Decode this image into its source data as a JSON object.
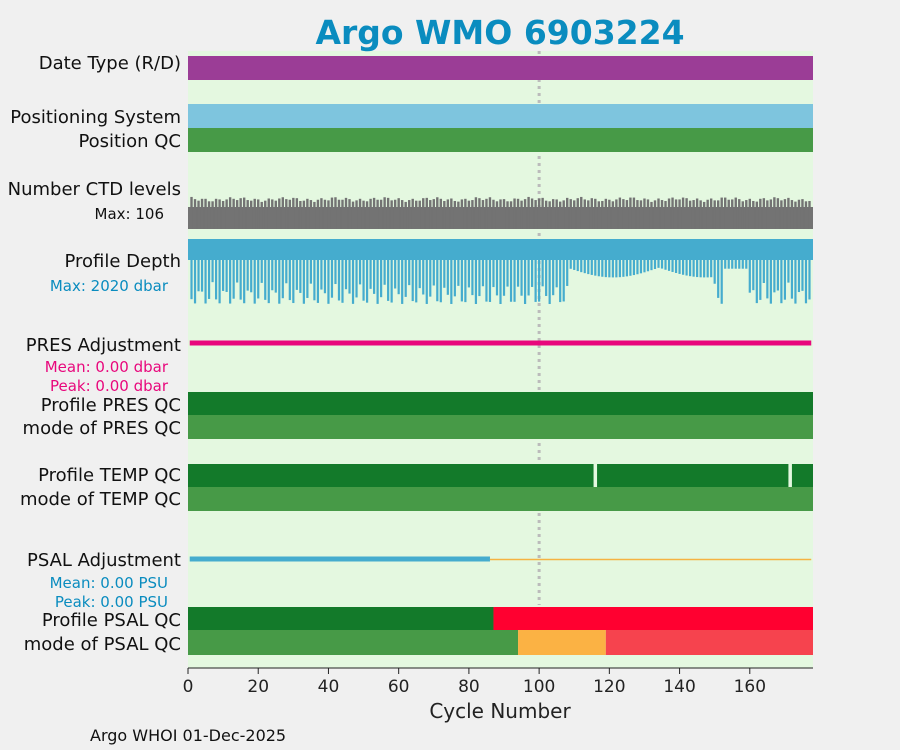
{
  "chart_data": {
    "type": "bar",
    "title": "Argo WMO 6903224",
    "xlabel": "Cycle Number",
    "xlim": [
      0,
      178
    ],
    "x_ticks": [
      "0",
      "20",
      "40",
      "60",
      "80",
      "100",
      "120",
      "140",
      "160"
    ],
    "x_tick_values": [
      0,
      20,
      40,
      60,
      80,
      100,
      120,
      140,
      160
    ],
    "reference_line_x": 100,
    "footer": "Argo WHOI 01-Dec-2025",
    "rows": {
      "date_type": {
        "label": "Date Type (R/D)",
        "segments": [
          {
            "from": 0,
            "to": 178,
            "color": "#9b3d96"
          }
        ]
      },
      "positioning_system": {
        "label": "Positioning System",
        "segments": [
          {
            "from": 0,
            "to": 178,
            "color": "#7ec5de"
          }
        ]
      },
      "position_qc": {
        "label": "Position QC",
        "segments": [
          {
            "from": 0,
            "to": 178,
            "color": "#479a47"
          }
        ]
      },
      "ctd_levels": {
        "label": "Number CTD levels",
        "max_label": "Max: 106",
        "max": 106,
        "color": "#737373"
      },
      "profile_depth": {
        "label": "Profile Depth",
        "max_label": "Max: 2020 dbar",
        "max": 2020,
        "color": "#45acce"
      },
      "pres_adjustment": {
        "label": "PRES Adjustment",
        "mean_label": "Mean: 0.00 dbar",
        "peak_label": "Peak: 0.00 dbar",
        "mean": 0.0,
        "peak": 0.0,
        "color": "#e8077c"
      },
      "profile_pres_qc": {
        "label": "Profile PRES QC",
        "segments": [
          {
            "from": 0,
            "to": 178,
            "color": "#137a2a"
          }
        ]
      },
      "mode_pres_qc": {
        "label": "mode of PRES QC",
        "segments": [
          {
            "from": 0,
            "to": 178,
            "color": "#479a47"
          }
        ]
      },
      "profile_temp_qc": {
        "label": "Profile TEMP QC",
        "segments": [
          {
            "from": 0,
            "to": 115.5,
            "color": "#137a2a"
          },
          {
            "from": 116.5,
            "to": 171,
            "color": "#137a2a"
          },
          {
            "from": 172,
            "to": 178,
            "color": "#137a2a"
          }
        ]
      },
      "mode_temp_qc": {
        "label": "mode of TEMP QC",
        "segments": [
          {
            "from": 0,
            "to": 178,
            "color": "#479a47"
          }
        ]
      },
      "psal_adjustment": {
        "label": "PSAL Adjustment",
        "mean_label": "Mean: 0.00 PSU",
        "peak_label": "Peak: 0.00 PSU",
        "mean": 0.0,
        "peak": 0.0,
        "color": "#45acce",
        "color_after": "#f5b342",
        "change_cycle": 86
      },
      "profile_psal_qc": {
        "label": "Profile PSAL QC",
        "segments": [
          {
            "from": 0,
            "to": 87,
            "color": "#137a2a"
          },
          {
            "from": 87,
            "to": 178,
            "color": "#ff0030"
          }
        ]
      },
      "mode_psal_qc": {
        "label": "mode of PSAL QC",
        "segments": [
          {
            "from": 0,
            "to": 94,
            "color": "#479a47"
          },
          {
            "from": 94,
            "to": 119,
            "color": "#fbb244"
          },
          {
            "from": 119,
            "to": 178,
            "color": "#f6434e"
          }
        ]
      }
    },
    "colors": {
      "plot_background": "#e4f8e0",
      "page_background": "#f0f0f0",
      "title": "#0a8cbf",
      "gridline": "#bbbbbb"
    }
  }
}
